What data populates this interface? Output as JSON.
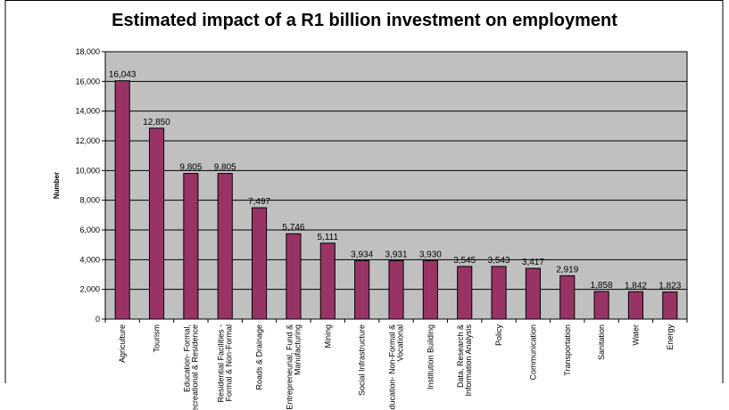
{
  "chart_data": {
    "type": "bar",
    "title": "Estimated impact of a R1 billion investment on employment",
    "xlabel": "",
    "ylabel": "Number",
    "ylim": [
      0,
      18000
    ],
    "yticks": [
      0,
      2000,
      4000,
      6000,
      8000,
      10000,
      12000,
      14000,
      16000,
      18000
    ],
    "ytick_labels": [
      "0",
      "2,000",
      "4,000",
      "6,000",
      "8,000",
      "10,000",
      "12,000",
      "14,000",
      "16,000",
      "18,000"
    ],
    "grid": true,
    "categories": [
      [
        "Agriculture"
      ],
      [
        "Tourism"
      ],
      [
        "Education- Formal,",
        "Recreational & Residence"
      ],
      [
        "Residential Facilities -",
        "Formal & Non-Formal"
      ],
      [
        "Roads & Drainage"
      ],
      [
        "Entrepreneurial, Fund &",
        "Manufacturing"
      ],
      [
        "Mining"
      ],
      [
        "Social Infrastructure"
      ],
      [
        "Education- Non-Formal &",
        "Vocational"
      ],
      [
        "Institution Building"
      ],
      [
        "Data, Research &",
        "Information Analysis"
      ],
      [
        "Policy"
      ],
      [
        "Communication"
      ],
      [
        "Transportation"
      ],
      [
        "Sanitation"
      ],
      [
        "Water"
      ],
      [
        "Energy"
      ]
    ],
    "values": [
      16043,
      12850,
      9805,
      9805,
      7497,
      5746,
      5111,
      3934,
      3931,
      3930,
      3545,
      3543,
      3417,
      2919,
      1858,
      1842,
      1823
    ],
    "value_labels": [
      "16,043",
      "12,850",
      "9,805",
      "9,805",
      "7,497",
      "5,746",
      "5,111",
      "3,934",
      "3,931",
      "3,930",
      "3,545",
      "3,543",
      "3,417",
      "2,919",
      "1,858",
      "1,842",
      "1,823"
    ],
    "colors": {
      "bar": "#993366",
      "bar_edge": "#000000",
      "plot_bg": "#c0c0c0",
      "grid": "#000000"
    }
  }
}
